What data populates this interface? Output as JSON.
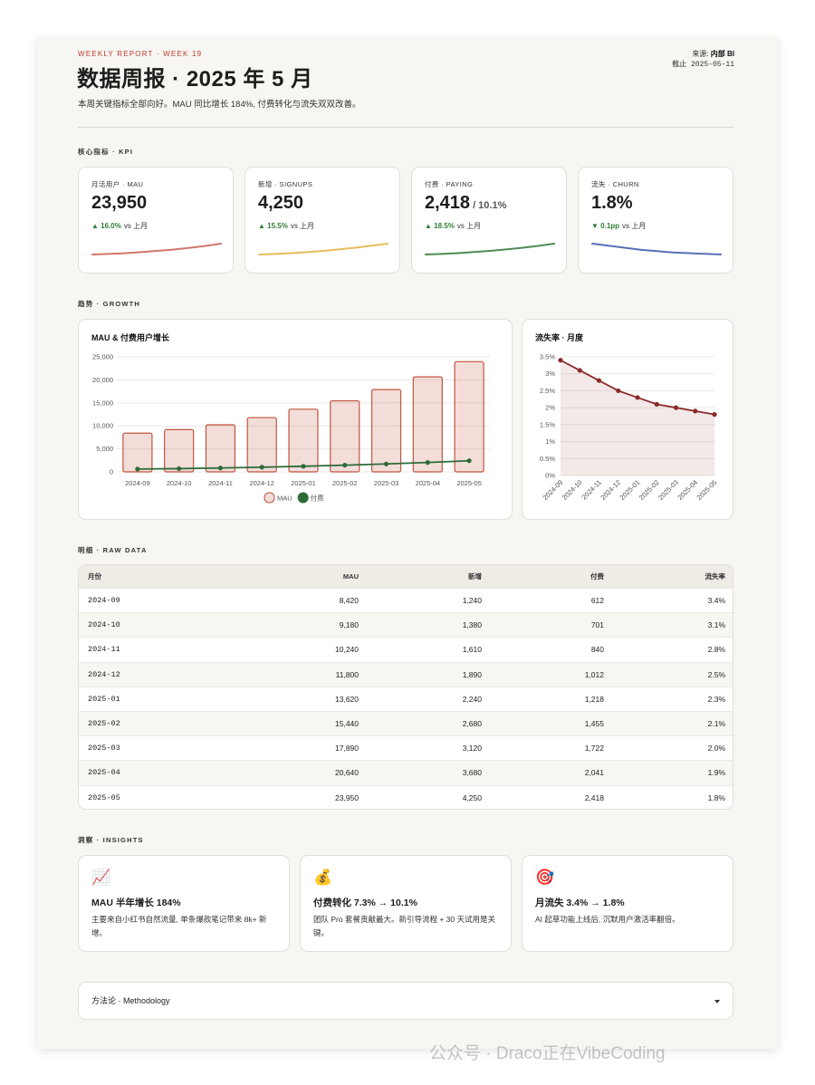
{
  "header": {
    "eyebrow": "WEEKLY REPORT · WEEK 19",
    "title": "数据周报 · 2025 年 5 月",
    "subtitle": "本周关键指标全部向好。MAU 同比增长 184%, 付费转化与流失双双改善。",
    "source_label": "来源:",
    "source": "内部 BI",
    "date_label": "截止",
    "date": "2025-05-11"
  },
  "sections": {
    "kpi": "核心指标 · KPI",
    "growth": "趋势 · GROWTH",
    "raw": "明细 · RAW DATA",
    "insights": "洞察 · INSIGHTS"
  },
  "kpis": [
    {
      "label": "月活用户 · MAU",
      "value": "23,950",
      "change": "▲ 16.0%",
      "compare": "vs 上月",
      "color": "#d0776b",
      "trend": [
        8420,
        9180,
        10240,
        11800,
        13620,
        15440,
        17890,
        20640,
        23950
      ]
    },
    {
      "label": "新增 · SIGNUPS",
      "value": "4,250",
      "change": "▲ 15.5%",
      "compare": "vs 上月",
      "color": "#e6bf5c",
      "trend": [
        1240,
        1380,
        1610,
        1890,
        2240,
        2680,
        3120,
        3680,
        4250
      ]
    },
    {
      "label": "付费 · PAYING",
      "value": "2,418",
      "sub": "/ 10.1%",
      "change": "▲ 18.5%",
      "compare": "vs 上月",
      "color": "#4f8a55",
      "trend": [
        612,
        701,
        840,
        1012,
        1218,
        1455,
        1722,
        2041,
        2418
      ]
    },
    {
      "label": "流失 · CHURN",
      "value": "1.8%",
      "change": "▼ 0.1pp",
      "compare": "vs 上月",
      "color": "#5a6fb8",
      "trend": [
        3.4,
        3.1,
        2.8,
        2.5,
        2.3,
        2.1,
        2.0,
        1.9,
        1.8
      ]
    }
  ],
  "chart_data": [
    {
      "type": "bar",
      "title": "MAU & 付费用户增长",
      "categories": [
        "2024-09",
        "2024-10",
        "2024-11",
        "2024-12",
        "2025-01",
        "2025-02",
        "2025-03",
        "2025-04",
        "2025-05"
      ],
      "series": [
        {
          "name": "MAU",
          "type": "bar",
          "color": "#c0553f",
          "values": [
            8420,
            9180,
            10240,
            11800,
            13620,
            15440,
            17890,
            20640,
            23950
          ]
        },
        {
          "name": "付费",
          "type": "line",
          "color": "#2e6b3a",
          "values": [
            612,
            701,
            840,
            1012,
            1218,
            1455,
            1722,
            2041,
            2418
          ]
        }
      ],
      "ylim": [
        0,
        25000
      ],
      "yticks": [
        0,
        {
          "value": 5000,
          "label": "5,000"
        },
        {
          "value": 10000,
          "label": "10,000"
        },
        {
          "value": 15000,
          "label": "15,000"
        },
        {
          "value": 20000,
          "label": "20,000"
        },
        {
          "value": 25000,
          "label": "25,000"
        }
      ],
      "grid": true,
      "legend": "bottom"
    },
    {
      "type": "line",
      "title": "流失率 · 月度",
      "categories": [
        "2024-09",
        "2024-10",
        "2024-11",
        "2024-12",
        "2025-01",
        "2025-02",
        "2025-03",
        "2025-04",
        "2025-05"
      ],
      "values": [
        3.4,
        3.1,
        2.8,
        2.5,
        2.3,
        2.1,
        2.0,
        1.9,
        1.8
      ],
      "color": "#8b2a2a",
      "area": true,
      "ylim": [
        0,
        3.5
      ],
      "yticks": [
        {
          "value": 0,
          "label": "0%"
        },
        {
          "value": 0.5,
          "label": "0.5%"
        },
        {
          "value": 1,
          "label": "1%"
        },
        {
          "value": 1.5,
          "label": "1.5%"
        },
        {
          "value": 2,
          "label": "2%"
        },
        {
          "value": 2.5,
          "label": "2.5%"
        },
        {
          "value": 3,
          "label": "3%"
        },
        {
          "value": 3.5,
          "label": "3.5%"
        }
      ],
      "grid": true
    }
  ],
  "table": {
    "headers": [
      "月份",
      "MAU",
      "新增",
      "付费",
      "流失率"
    ],
    "rows": [
      [
        "2024-09",
        "8,420",
        "1,240",
        "612",
        "3.4%"
      ],
      [
        "2024-10",
        "9,180",
        "1,380",
        "701",
        "3.1%"
      ],
      [
        "2024-11",
        "10,240",
        "1,610",
        "840",
        "2.8%"
      ],
      [
        "2024-12",
        "11,800",
        "1,890",
        "1,012",
        "2.5%"
      ],
      [
        "2025-01",
        "13,620",
        "2,240",
        "1,218",
        "2.3%"
      ],
      [
        "2025-02",
        "15,440",
        "2,680",
        "1,455",
        "2.1%"
      ],
      [
        "2025-03",
        "17,890",
        "3,120",
        "1,722",
        "2.0%"
      ],
      [
        "2025-04",
        "20,640",
        "3,680",
        "2,041",
        "1.9%"
      ],
      [
        "2025-05",
        "23,950",
        "4,250",
        "2,418",
        "1.8%"
      ]
    ]
  },
  "insights": [
    {
      "icon": "📈",
      "title": "MAU 半年增长 184%",
      "text": "主要来自小红书自然流量, 单条爆款笔记带来 8k+ 新增。"
    },
    {
      "icon": "💰",
      "title": "付费转化 7.3% → 10.1%",
      "text": "团队 Pro 套餐贡献最大。新引导流程 + 30 天试用是关键。"
    },
    {
      "icon": "🎯",
      "title": "月流失 3.4% → 1.8%",
      "text": "AI 起草功能上线后, 沉默用户激活率翻倍。"
    }
  ],
  "methodology": "方法论 · Methodology",
  "watermark": "公众号 · Draco正在VibeCoding"
}
